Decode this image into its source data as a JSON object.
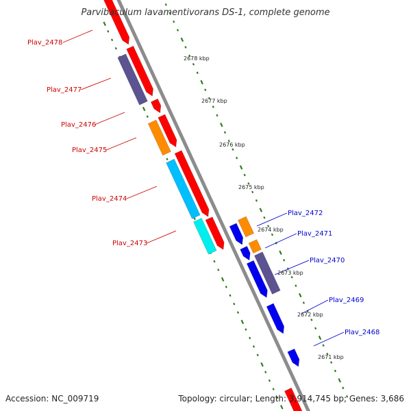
{
  "title": "Parvibaculum lavamentivorans DS-1, complete genome",
  "footer": {
    "accession": "Accession: NC_009719",
    "summary": "Topology: circular; Length: 3,914,745 bp; Genes: 3,686"
  },
  "colors": {
    "backbone": "#8c8c8c",
    "tick": "#2e7d1a",
    "red_label": "#cc0000",
    "blue_label": "#0000cc",
    "red": "#ff0000",
    "purple": "#5c5490",
    "orange": "#ff8c00",
    "blue": "#0000ee",
    "cyan": "#00bfff",
    "cyan_light": "#00eeee"
  },
  "scale_labels": [
    "2678 kbp",
    "2677 kbp",
    "2676 kbp",
    "2675 kbp",
    "2674 kbp",
    "2673 kbp",
    "2672 kbp",
    "2671 kbp"
  ],
  "gene_labels": [
    "Plav_2478",
    "Plav_2477",
    "Plav_2476",
    "Plav_2475",
    "Plav_2474",
    "Plav_2473",
    "Plav_2472",
    "Plav_2471",
    "Plav_2470",
    "Plav_2469",
    "Plav_2468"
  ]
}
